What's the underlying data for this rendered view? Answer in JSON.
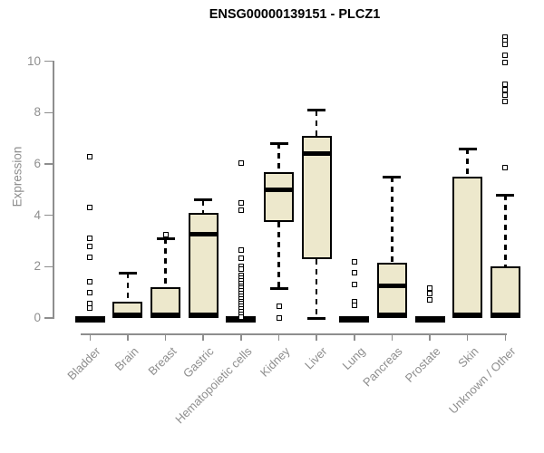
{
  "title": "ENSG00000139151 - PLCZ1",
  "chart_data": {
    "type": "boxplot",
    "title": "ENSG00000139151 - PLCZ1",
    "xlabel": "",
    "ylabel": "Expression",
    "ylim": [
      0,
      11
    ],
    "yticks": [
      0,
      2,
      4,
      6,
      8,
      10
    ],
    "grid": false,
    "legend": false,
    "categories": [
      "Bladder",
      "Brain",
      "Breast",
      "Gastric",
      "Hematopoietic cells",
      "Kidney",
      "Liver",
      "Lung",
      "Pancreas",
      "Prostate",
      "Skin",
      "Unknown / Other"
    ],
    "boxes": [
      {
        "category": "Bladder",
        "q1": 0,
        "median": 0,
        "q3": 0,
        "whisker_low": 0,
        "whisker_high": 0,
        "outliers": [
          6.3,
          4.3,
          3.1,
          2.8,
          2.35,
          1.4,
          1.0,
          0.55,
          0.4
        ]
      },
      {
        "category": "Brain",
        "q1": 0,
        "median": 0.05,
        "q3": 0.65,
        "whisker_low": 0,
        "whisker_high": 1.75,
        "outliers": []
      },
      {
        "category": "Breast",
        "q1": 0,
        "median": 0.05,
        "q3": 1.2,
        "whisker_low": 0,
        "whisker_high": 3.1,
        "outliers": [
          3.25
        ]
      },
      {
        "category": "Gastric",
        "q1": 0,
        "median": 3.25,
        "q3": 4.1,
        "whisker_low": 0,
        "whisker_high": 4.6,
        "outliers": []
      },
      {
        "category": "Hematopoietic cells",
        "q1": 0,
        "median": 0,
        "q3": 0,
        "whisker_low": 0,
        "whisker_high": 0,
        "outliers": [
          6.05,
          4.5,
          4.2,
          2.65,
          2.33,
          2.0,
          1.9,
          1.65,
          1.55,
          1.45,
          1.35,
          1.25,
          1.15,
          1.05,
          0.95,
          0.85,
          0.75,
          0.65,
          0.55,
          0.45,
          0.35,
          0.25,
          0.15,
          0.05
        ]
      },
      {
        "category": "Kidney",
        "q1": 3.75,
        "median": 5.0,
        "q3": 5.7,
        "whisker_low": 1.15,
        "whisker_high": 6.8,
        "outliers": [
          0.45,
          0
        ]
      },
      {
        "category": "Liver",
        "q1": 2.3,
        "median": 6.4,
        "q3": 7.1,
        "whisker_low": 0,
        "whisker_high": 8.1,
        "outliers": []
      },
      {
        "category": "Lung",
        "q1": 0,
        "median": 0,
        "q3": 0,
        "whisker_low": 0,
        "whisker_high": 0,
        "outliers": [
          2.2,
          1.75,
          1.3,
          0.65,
          0.5
        ]
      },
      {
        "category": "Pancreas",
        "q1": 0,
        "median": 1.25,
        "q3": 2.15,
        "whisker_low": 0,
        "whisker_high": 5.5,
        "outliers": []
      },
      {
        "category": "Prostate",
        "q1": 0,
        "median": 0,
        "q3": 0,
        "whisker_low": 0,
        "whisker_high": 0,
        "outliers": [
          1.15,
          0.95,
          0.7
        ]
      },
      {
        "category": "Skin",
        "q1": 0,
        "median": 0.05,
        "q3": 5.5,
        "whisker_low": 0,
        "whisker_high": 6.6,
        "outliers": []
      },
      {
        "category": "Unknown / Other",
        "q1": 0,
        "median": 0.05,
        "q3": 2.0,
        "whisker_low": 0,
        "whisker_high": 4.8,
        "outliers": [
          10.95,
          10.8,
          10.65,
          10.25,
          9.95,
          9.1,
          8.9,
          8.7,
          8.45,
          5.85
        ]
      }
    ]
  },
  "colors": {
    "box_fill": "#ede8cc",
    "box_border": "#000000",
    "median": "#000000",
    "whisker": "#000000",
    "outlier_stroke": "#000000",
    "axis": "#8e8e8e",
    "tick_label": "#8e8e8e",
    "title": "#000000",
    "background": "#ffffff"
  }
}
